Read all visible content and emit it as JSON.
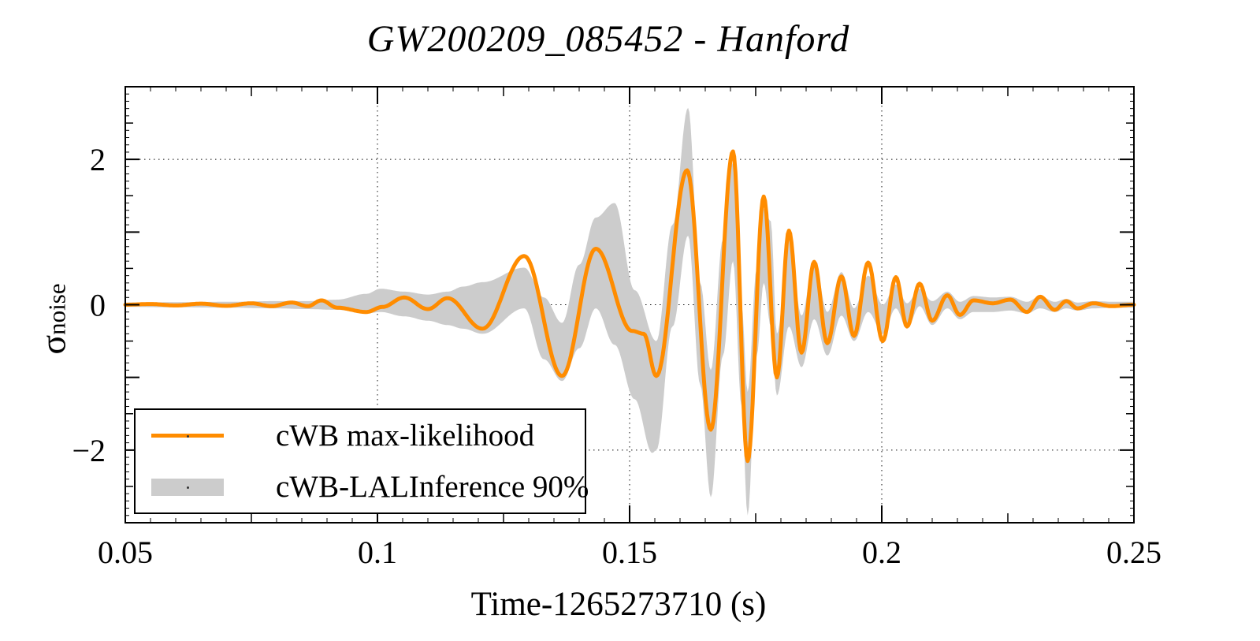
{
  "figure": {
    "title": "GW200209_085452 - Hanford",
    "x_label": "Time-1265273710 (s)",
    "y_label_symbol": "σ",
    "y_label_subscript": "noise"
  },
  "legend": {
    "items": [
      {
        "label": "cWB max-likelihood",
        "swatch": "line",
        "color": "#ff8c00"
      },
      {
        "label": "cWB-LALInference 90%",
        "swatch": "band",
        "color": "#cccccc"
      }
    ]
  },
  "chart_data": {
    "type": "line",
    "title": "GW200209_085452 - Hanford",
    "xlabel": "Time-1265273710 (s)",
    "ylabel": "σ_noise",
    "xlim": [
      0.05,
      0.25
    ],
    "ylim": [
      -3,
      3
    ],
    "grid": "dotted",
    "legend_position": "bottom-left",
    "x_ticks": [
      {
        "v": 0.05,
        "label": "0.05"
      },
      {
        "v": 0.1,
        "label": "0.1"
      },
      {
        "v": 0.15,
        "label": "0.15"
      },
      {
        "v": 0.2,
        "label": "0.2"
      },
      {
        "v": 0.25,
        "label": "0.25"
      }
    ],
    "y_ticks": [
      {
        "v": -2,
        "label": "−2"
      },
      {
        "v": 0,
        "label": "0"
      },
      {
        "v": 2,
        "label": "2"
      }
    ],
    "x_grid": [
      0.1,
      0.15,
      0.2
    ],
    "y_grid": [
      -2,
      0,
      2
    ],
    "series": [
      {
        "name": "cWB max-likelihood",
        "type": "line",
        "color": "#ff8c00",
        "keypoints": [
          [
            0.05,
            0.0
          ],
          [
            0.055,
            0.01
          ],
          [
            0.06,
            -0.01
          ],
          [
            0.065,
            0.015
          ],
          [
            0.07,
            -0.015
          ],
          [
            0.075,
            0.02
          ],
          [
            0.079,
            -0.02
          ],
          [
            0.083,
            0.03
          ],
          [
            0.0862,
            -0.02
          ],
          [
            0.0889,
            0.06
          ],
          [
            0.092,
            -0.04
          ],
          [
            0.0978,
            -0.1
          ],
          [
            0.101,
            -0.03
          ],
          [
            0.1053,
            0.1
          ],
          [
            0.11,
            -0.06
          ],
          [
            0.1139,
            0.09
          ],
          [
            0.1208,
            -0.33
          ],
          [
            0.1291,
            0.67
          ],
          [
            0.1366,
            -0.98
          ],
          [
            0.1433,
            0.77
          ],
          [
            0.1505,
            -0.36
          ],
          [
            0.1528,
            -0.4
          ],
          [
            0.1553,
            -0.98
          ],
          [
            0.1614,
            1.85
          ],
          [
            0.1661,
            -1.72
          ],
          [
            0.1705,
            2.11
          ],
          [
            0.1734,
            -2.15
          ],
          [
            0.1766,
            1.49
          ],
          [
            0.1792,
            -1.0
          ],
          [
            0.1816,
            1.02
          ],
          [
            0.1841,
            -0.66
          ],
          [
            0.1866,
            0.59
          ],
          [
            0.1892,
            -0.53
          ],
          [
            0.192,
            0.39
          ],
          [
            0.1945,
            -0.43
          ],
          [
            0.1973,
            0.58
          ],
          [
            0.2002,
            -0.5
          ],
          [
            0.2028,
            0.38
          ],
          [
            0.205,
            -0.3
          ],
          [
            0.2075,
            0.29
          ],
          [
            0.21,
            -0.22
          ],
          [
            0.213,
            0.13
          ],
          [
            0.2155,
            -0.14
          ],
          [
            0.2182,
            0.06
          ],
          [
            0.222,
            0.02
          ],
          [
            0.2255,
            0.07
          ],
          [
            0.2288,
            -0.1
          ],
          [
            0.2314,
            0.11
          ],
          [
            0.2343,
            -0.07
          ],
          [
            0.2366,
            0.05
          ],
          [
            0.2388,
            -0.05
          ],
          [
            0.242,
            0.02
          ],
          [
            0.2455,
            -0.02
          ],
          [
            0.25,
            0.0
          ]
        ]
      },
      {
        "name": "cWB-LALInference 90%",
        "type": "band",
        "color": "#cccccc",
        "hi": [
          [
            0.05,
            0.03
          ],
          [
            0.06,
            0.035
          ],
          [
            0.07,
            0.04
          ],
          [
            0.08,
            0.05
          ],
          [
            0.086,
            0.05
          ],
          [
            0.092,
            0.07
          ],
          [
            0.0978,
            0.15
          ],
          [
            0.1006,
            0.22
          ],
          [
            0.1053,
            0.18
          ],
          [
            0.11,
            0.14
          ],
          [
            0.1139,
            0.18
          ],
          [
            0.117,
            0.25
          ],
          [
            0.1208,
            0.31
          ],
          [
            0.1291,
            0.51
          ],
          [
            0.133,
            0.1
          ],
          [
            0.1366,
            -0.25
          ],
          [
            0.14,
            0.55
          ],
          [
            0.1433,
            1.2
          ],
          [
            0.147,
            1.4
          ],
          [
            0.151,
            0.2
          ],
          [
            0.1553,
            -0.5
          ],
          [
            0.1585,
            1.1
          ],
          [
            0.1616,
            2.71
          ],
          [
            0.164,
            0.3
          ],
          [
            0.1661,
            -0.9
          ],
          [
            0.1685,
            0.9
          ],
          [
            0.1705,
            1.96
          ],
          [
            0.1722,
            0.0
          ],
          [
            0.1734,
            -1.2
          ],
          [
            0.1752,
            0.5
          ],
          [
            0.1766,
            1.32
          ],
          [
            0.178,
            1.15
          ],
          [
            0.1792,
            -0.4
          ],
          [
            0.1816,
            0.9
          ],
          [
            0.1841,
            -0.15
          ],
          [
            0.1866,
            0.62
          ],
          [
            0.1892,
            -0.1
          ],
          [
            0.192,
            0.45
          ],
          [
            0.1945,
            -0.05
          ],
          [
            0.1973,
            0.4
          ],
          [
            0.2002,
            0.0
          ],
          [
            0.2028,
            0.28
          ],
          [
            0.205,
            0.02
          ],
          [
            0.2075,
            0.22
          ],
          [
            0.21,
            0.05
          ],
          [
            0.213,
            0.18
          ],
          [
            0.2155,
            0.04
          ],
          [
            0.2182,
            0.12
          ],
          [
            0.222,
            0.1
          ],
          [
            0.2255,
            0.11
          ],
          [
            0.2288,
            0.04
          ],
          [
            0.2314,
            0.12
          ],
          [
            0.2343,
            0.04
          ],
          [
            0.2366,
            0.08
          ],
          [
            0.2388,
            0.03
          ],
          [
            0.242,
            0.05
          ],
          [
            0.246,
            0.04
          ],
          [
            0.25,
            0.04
          ]
        ],
        "lo": [
          [
            0.05,
            -0.03
          ],
          [
            0.06,
            -0.035
          ],
          [
            0.07,
            -0.04
          ],
          [
            0.08,
            -0.05
          ],
          [
            0.086,
            -0.06
          ],
          [
            0.092,
            -0.07
          ],
          [
            0.0978,
            -0.12
          ],
          [
            0.1006,
            -0.1
          ],
          [
            0.1053,
            -0.16
          ],
          [
            0.11,
            -0.22
          ],
          [
            0.1139,
            -0.28
          ],
          [
            0.117,
            -0.33
          ],
          [
            0.1208,
            -0.4
          ],
          [
            0.1291,
            -0.05
          ],
          [
            0.133,
            -0.75
          ],
          [
            0.1366,
            -1.05
          ],
          [
            0.14,
            -0.6
          ],
          [
            0.1433,
            -0.05
          ],
          [
            0.147,
            -0.55
          ],
          [
            0.151,
            -1.3
          ],
          [
            0.1545,
            -2.04
          ],
          [
            0.1553,
            -2.0
          ],
          [
            0.1585,
            -0.3
          ],
          [
            0.1616,
            0.95
          ],
          [
            0.164,
            -1.1
          ],
          [
            0.1661,
            -2.65
          ],
          [
            0.1685,
            -0.7
          ],
          [
            0.1705,
            0.6
          ],
          [
            0.1722,
            -1.4
          ],
          [
            0.1734,
            -2.9
          ],
          [
            0.1752,
            -0.7
          ],
          [
            0.1766,
            0.3
          ],
          [
            0.178,
            -0.3
          ],
          [
            0.1792,
            -1.25
          ],
          [
            0.1816,
            -0.3
          ],
          [
            0.1841,
            -0.86
          ],
          [
            0.1866,
            -0.2
          ],
          [
            0.1892,
            -0.7
          ],
          [
            0.192,
            -0.15
          ],
          [
            0.1945,
            -0.5
          ],
          [
            0.1973,
            -0.1
          ],
          [
            0.2002,
            -0.4
          ],
          [
            0.2028,
            -0.05
          ],
          [
            0.205,
            -0.33
          ],
          [
            0.2075,
            -0.02
          ],
          [
            0.21,
            -0.28
          ],
          [
            0.213,
            -0.05
          ],
          [
            0.2155,
            -0.2
          ],
          [
            0.2182,
            -0.1
          ],
          [
            0.222,
            -0.1
          ],
          [
            0.2255,
            -0.08
          ],
          [
            0.2288,
            -0.12
          ],
          [
            0.2314,
            -0.05
          ],
          [
            0.2343,
            -0.1
          ],
          [
            0.2366,
            -0.05
          ],
          [
            0.2388,
            -0.08
          ],
          [
            0.242,
            -0.05
          ],
          [
            0.246,
            -0.04
          ],
          [
            0.25,
            -0.04
          ]
        ]
      }
    ]
  }
}
